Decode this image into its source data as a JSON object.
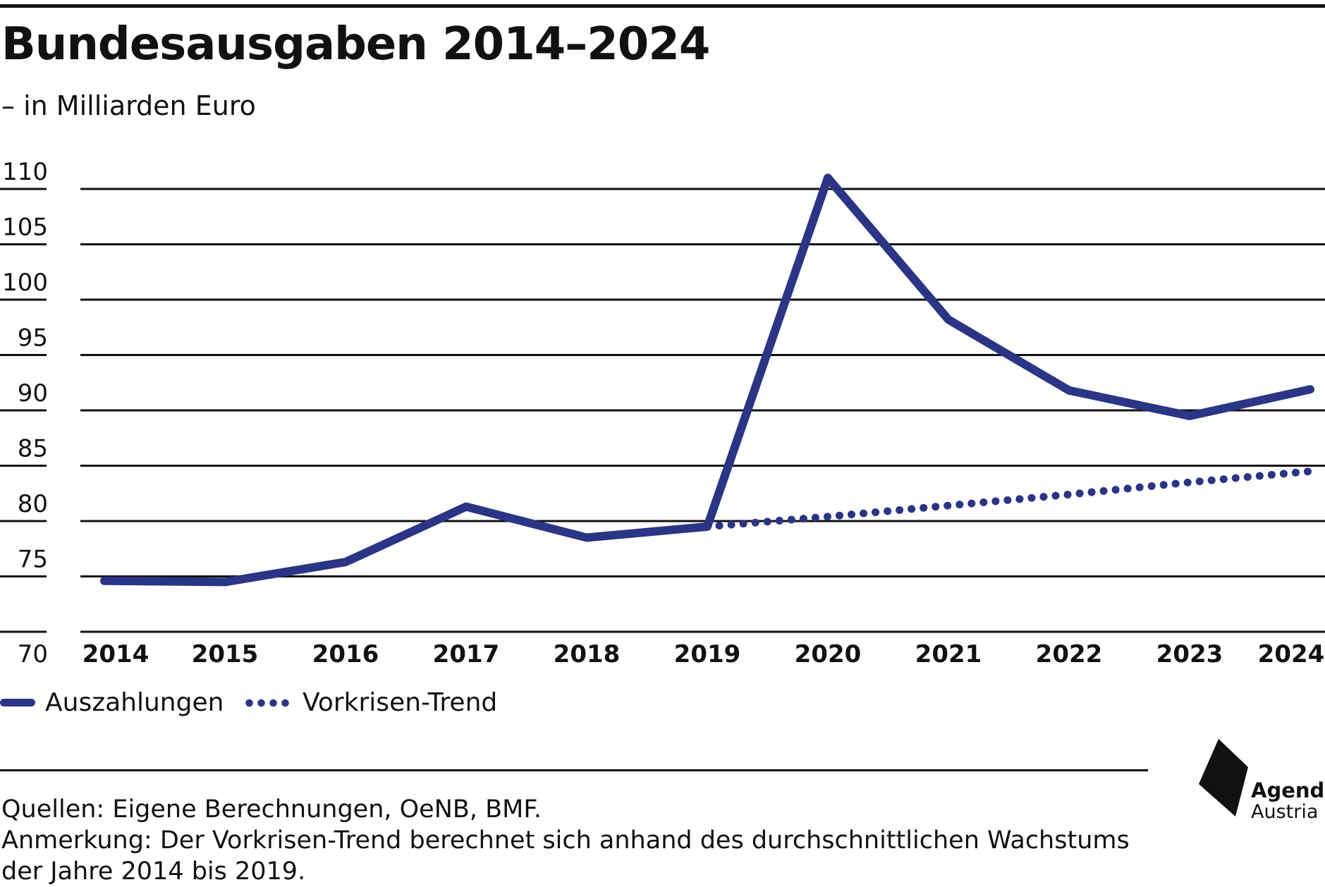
{
  "title": "Bundesausgaben 2014–2024",
  "subtitle": "– in Milliarden Euro",
  "chart_data": {
    "type": "line",
    "title": "Bundesausgaben 2014–2024",
    "subtitle": "– in Milliarden Euro",
    "xlabel": "",
    "ylabel": "",
    "categories": [
      "2014",
      "2015",
      "2016",
      "2017",
      "2018",
      "2019",
      "2020",
      "2021",
      "2022",
      "2023",
      "2024"
    ],
    "ylim": [
      70,
      110
    ],
    "yticks": [
      70,
      75,
      80,
      85,
      90,
      95,
      100,
      105,
      110
    ],
    "grid": true,
    "legend_position": "bottom-left",
    "series": [
      {
        "name": "Auszahlungen",
        "style": "solid",
        "color": "#2b3585",
        "values": [
          74.6,
          74.5,
          76.3,
          81.3,
          78.5,
          79.5,
          111.0,
          98.2,
          91.8,
          89.5,
          91.9
        ]
      },
      {
        "name": "Vorkrisen-Trend",
        "style": "dotted",
        "color": "#2b3585",
        "x_start": "2019",
        "values": [
          null,
          null,
          null,
          null,
          null,
          79.5,
          80.4,
          81.4,
          82.4,
          83.5,
          84.5
        ]
      }
    ]
  },
  "legend": {
    "solid_label": "Auszahlungen",
    "dotted_label": "Vorkrisen-Trend"
  },
  "notes": {
    "sources": "Quellen: Eigene Berechnungen, OeNB, BMF.",
    "remark_line1": "Anmerkung: Der Vorkrisen-Trend berechnet sich anhand des durchschnittlichen Wachstums",
    "remark_line2": "der Jahre 2014 bis 2019."
  },
  "logo": {
    "line1": "Agenda",
    "line2": "Austria"
  },
  "colors": {
    "series": "#2b3585",
    "grid": "#111111",
    "text": "#111111"
  }
}
